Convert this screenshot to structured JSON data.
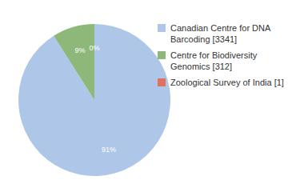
{
  "chart_data": {
    "type": "pie",
    "categories": [
      "Canadian Centre for DNA\nBarcoding [3341]",
      "Centre for Biodiversity\nGenomics [312]",
      "Zoological Survey of India [1]"
    ],
    "values": [
      91,
      9,
      0
    ],
    "value_labels": [
      "91%",
      "9%",
      "0%"
    ],
    "colors": [
      "#aec6e8",
      "#8db87a",
      "#e07060"
    ],
    "data_labels": true,
    "legend": "upper right"
  }
}
